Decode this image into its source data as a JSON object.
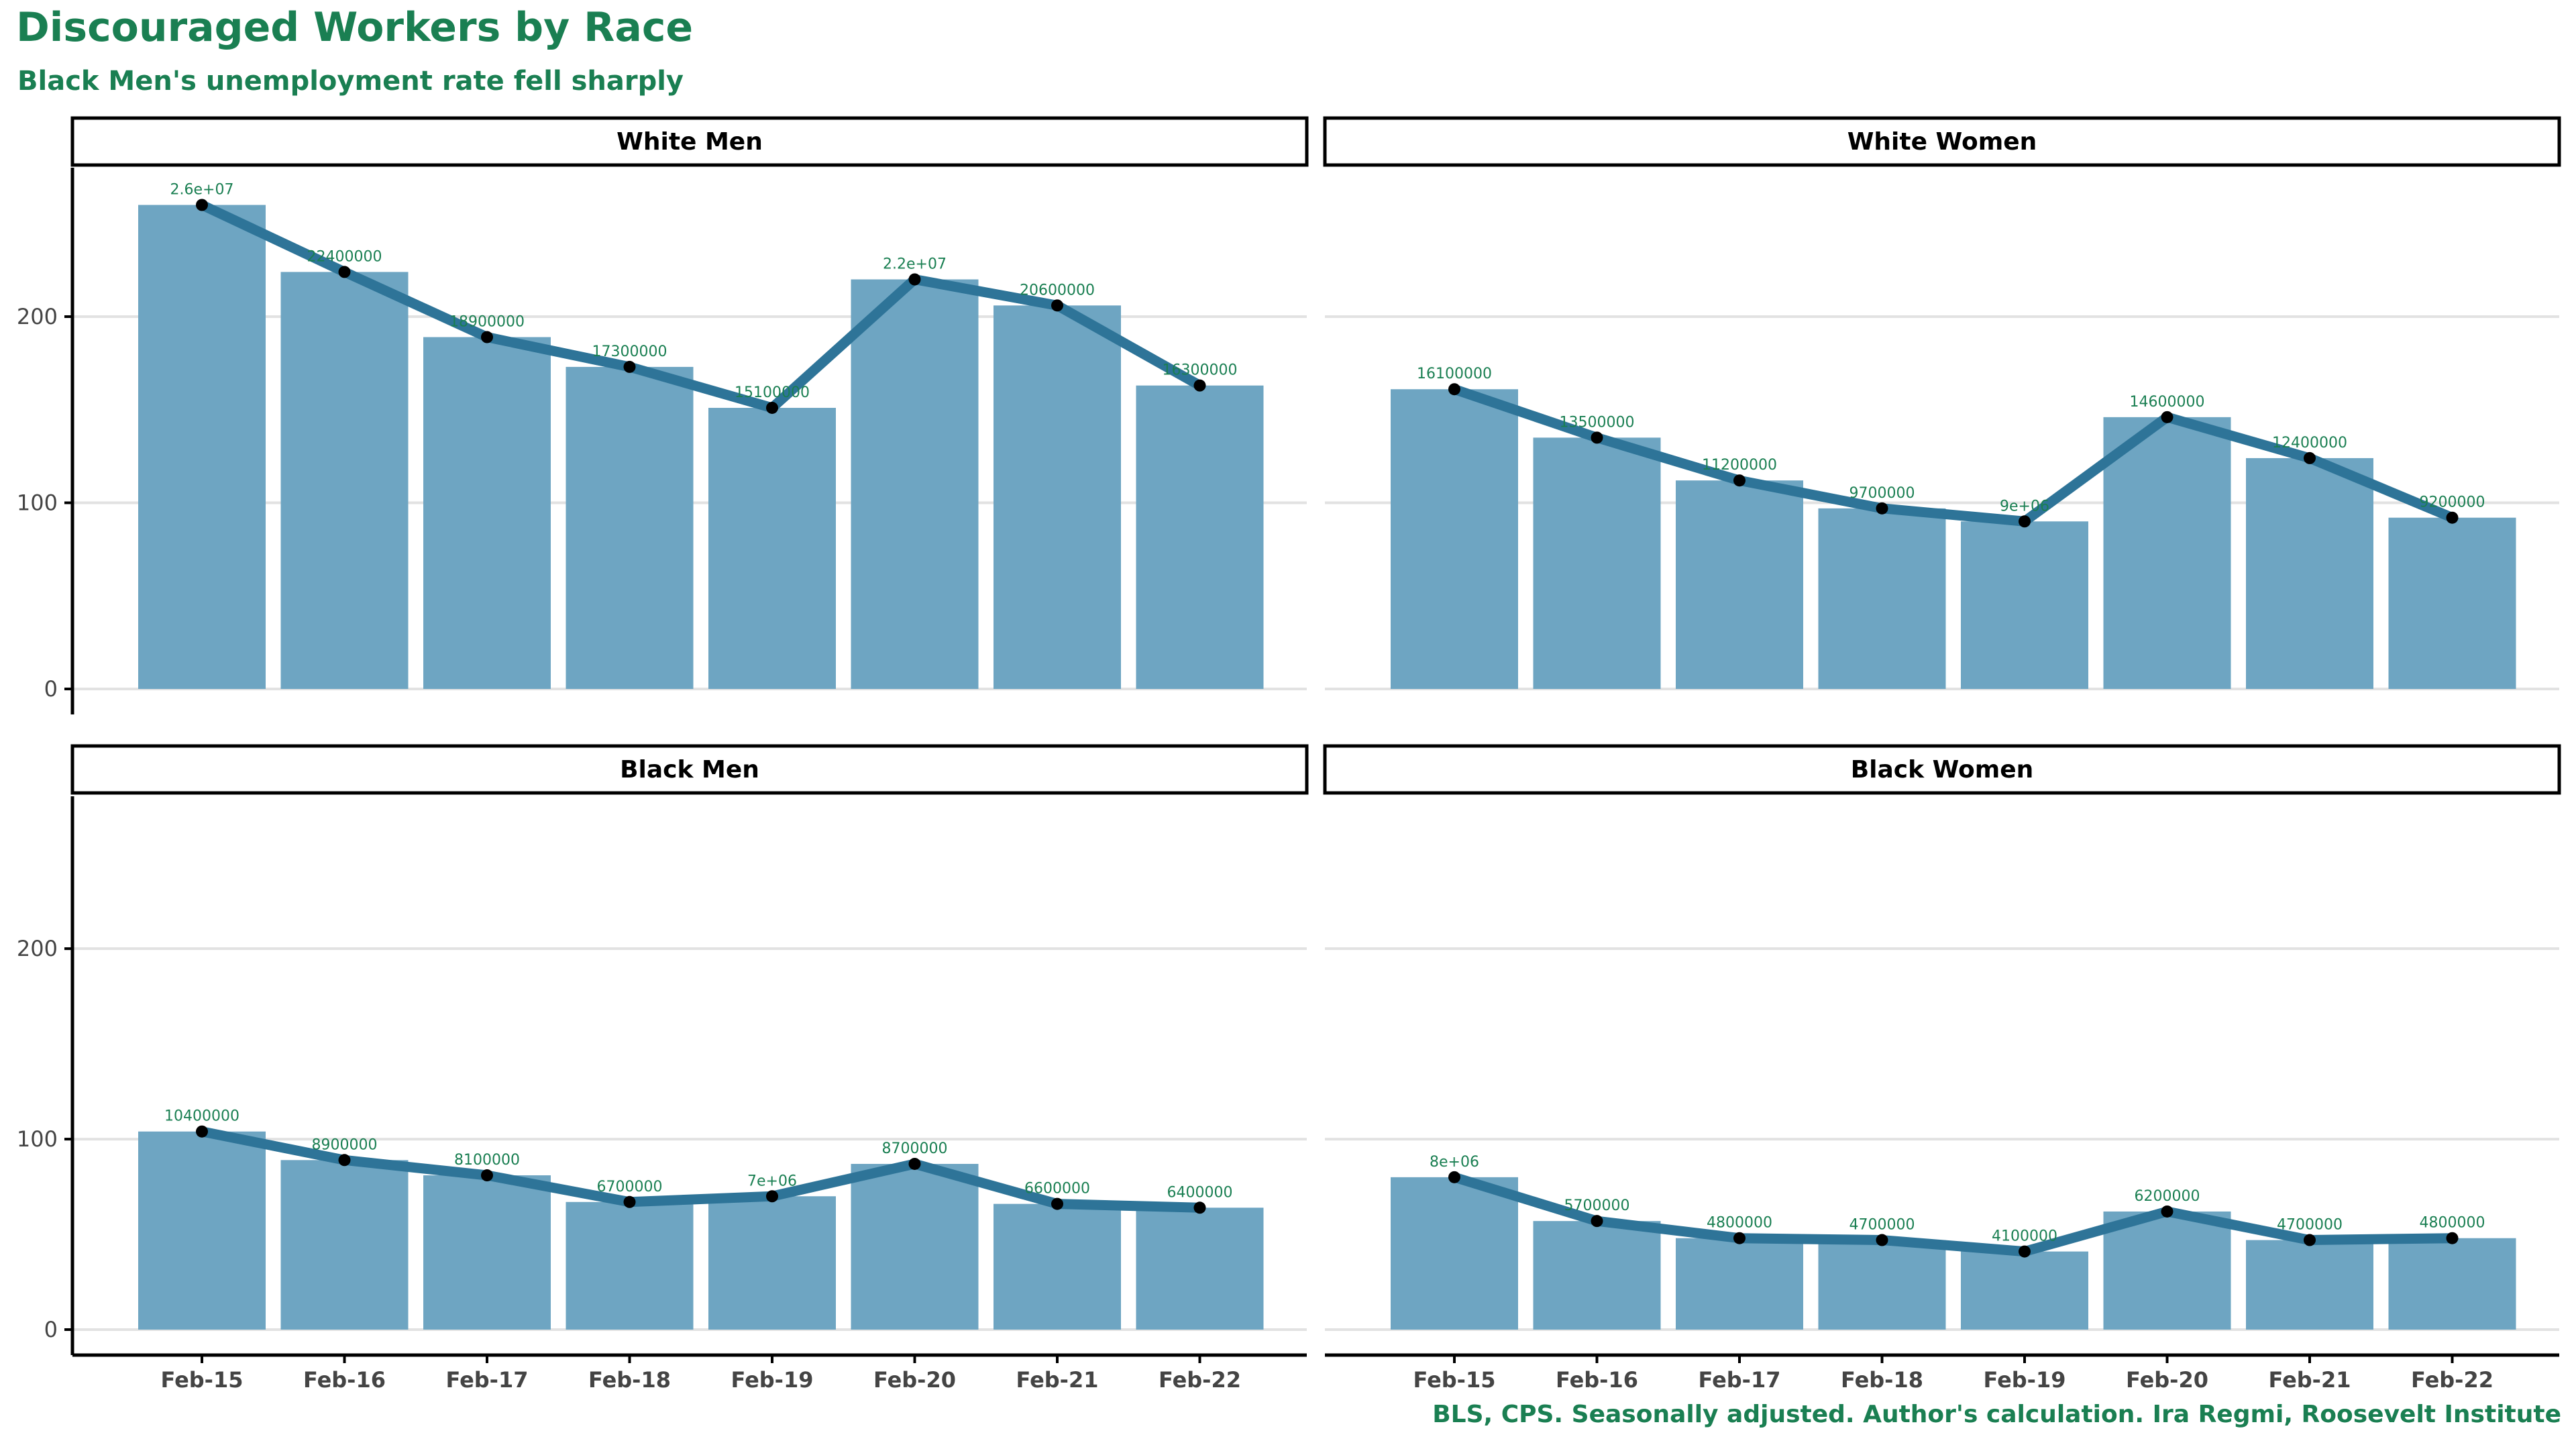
{
  "chart_data": {
    "type": "bar",
    "title": "Discouraged Workers by Race",
    "subtitle": "Black Men's unemployment rate fell sharply",
    "caption": "BLS, CPS. Seasonally adjusted. Author's calculation. Ira Regmi, Roosevelt Institute",
    "xlabel": "",
    "ylabel": "",
    "ylim": [
      0,
      280
    ],
    "y_ticks": [
      "0",
      "100",
      "200"
    ],
    "grid": true,
    "legend": "none",
    "overlay": "line with points connecting bar tops",
    "colors": {
      "bar": "#6ea5c2",
      "line": "#2e7498",
      "point": "#000000",
      "label": "#1a7f52",
      "title": "#1a7f52"
    },
    "categories": [
      "Feb-15",
      "Feb-16",
      "Feb-17",
      "Feb-18",
      "Feb-19",
      "Feb-20",
      "Feb-21",
      "Feb-22"
    ],
    "panels": [
      {
        "name": "White Men",
        "values": [
          260,
          224,
          189,
          173,
          151,
          220,
          206,
          163
        ],
        "labels": [
          "2.6e+07",
          "22400000",
          "18900000",
          "17300000",
          "15100000",
          "2.2e+07",
          "20600000",
          "16300000"
        ]
      },
      {
        "name": "White Women",
        "values": [
          161,
          135,
          112,
          97,
          90,
          146,
          124,
          92
        ],
        "labels": [
          "16100000",
          "13500000",
          "11200000",
          "9700000",
          "9e+06",
          "14600000",
          "12400000",
          "9200000"
        ]
      },
      {
        "name": "Black Men",
        "values": [
          104,
          89,
          81,
          67,
          70,
          87,
          66,
          64
        ],
        "labels": [
          "10400000",
          "8900000",
          "8100000",
          "6700000",
          "7e+06",
          "8700000",
          "6600000",
          "6400000"
        ]
      },
      {
        "name": "Black Women",
        "values": [
          80,
          57,
          48,
          47,
          41,
          62,
          47,
          48
        ],
        "labels": [
          "8e+06",
          "5700000",
          "4800000",
          "4700000",
          "4100000",
          "6200000",
          "4700000",
          "4800000"
        ]
      }
    ]
  }
}
